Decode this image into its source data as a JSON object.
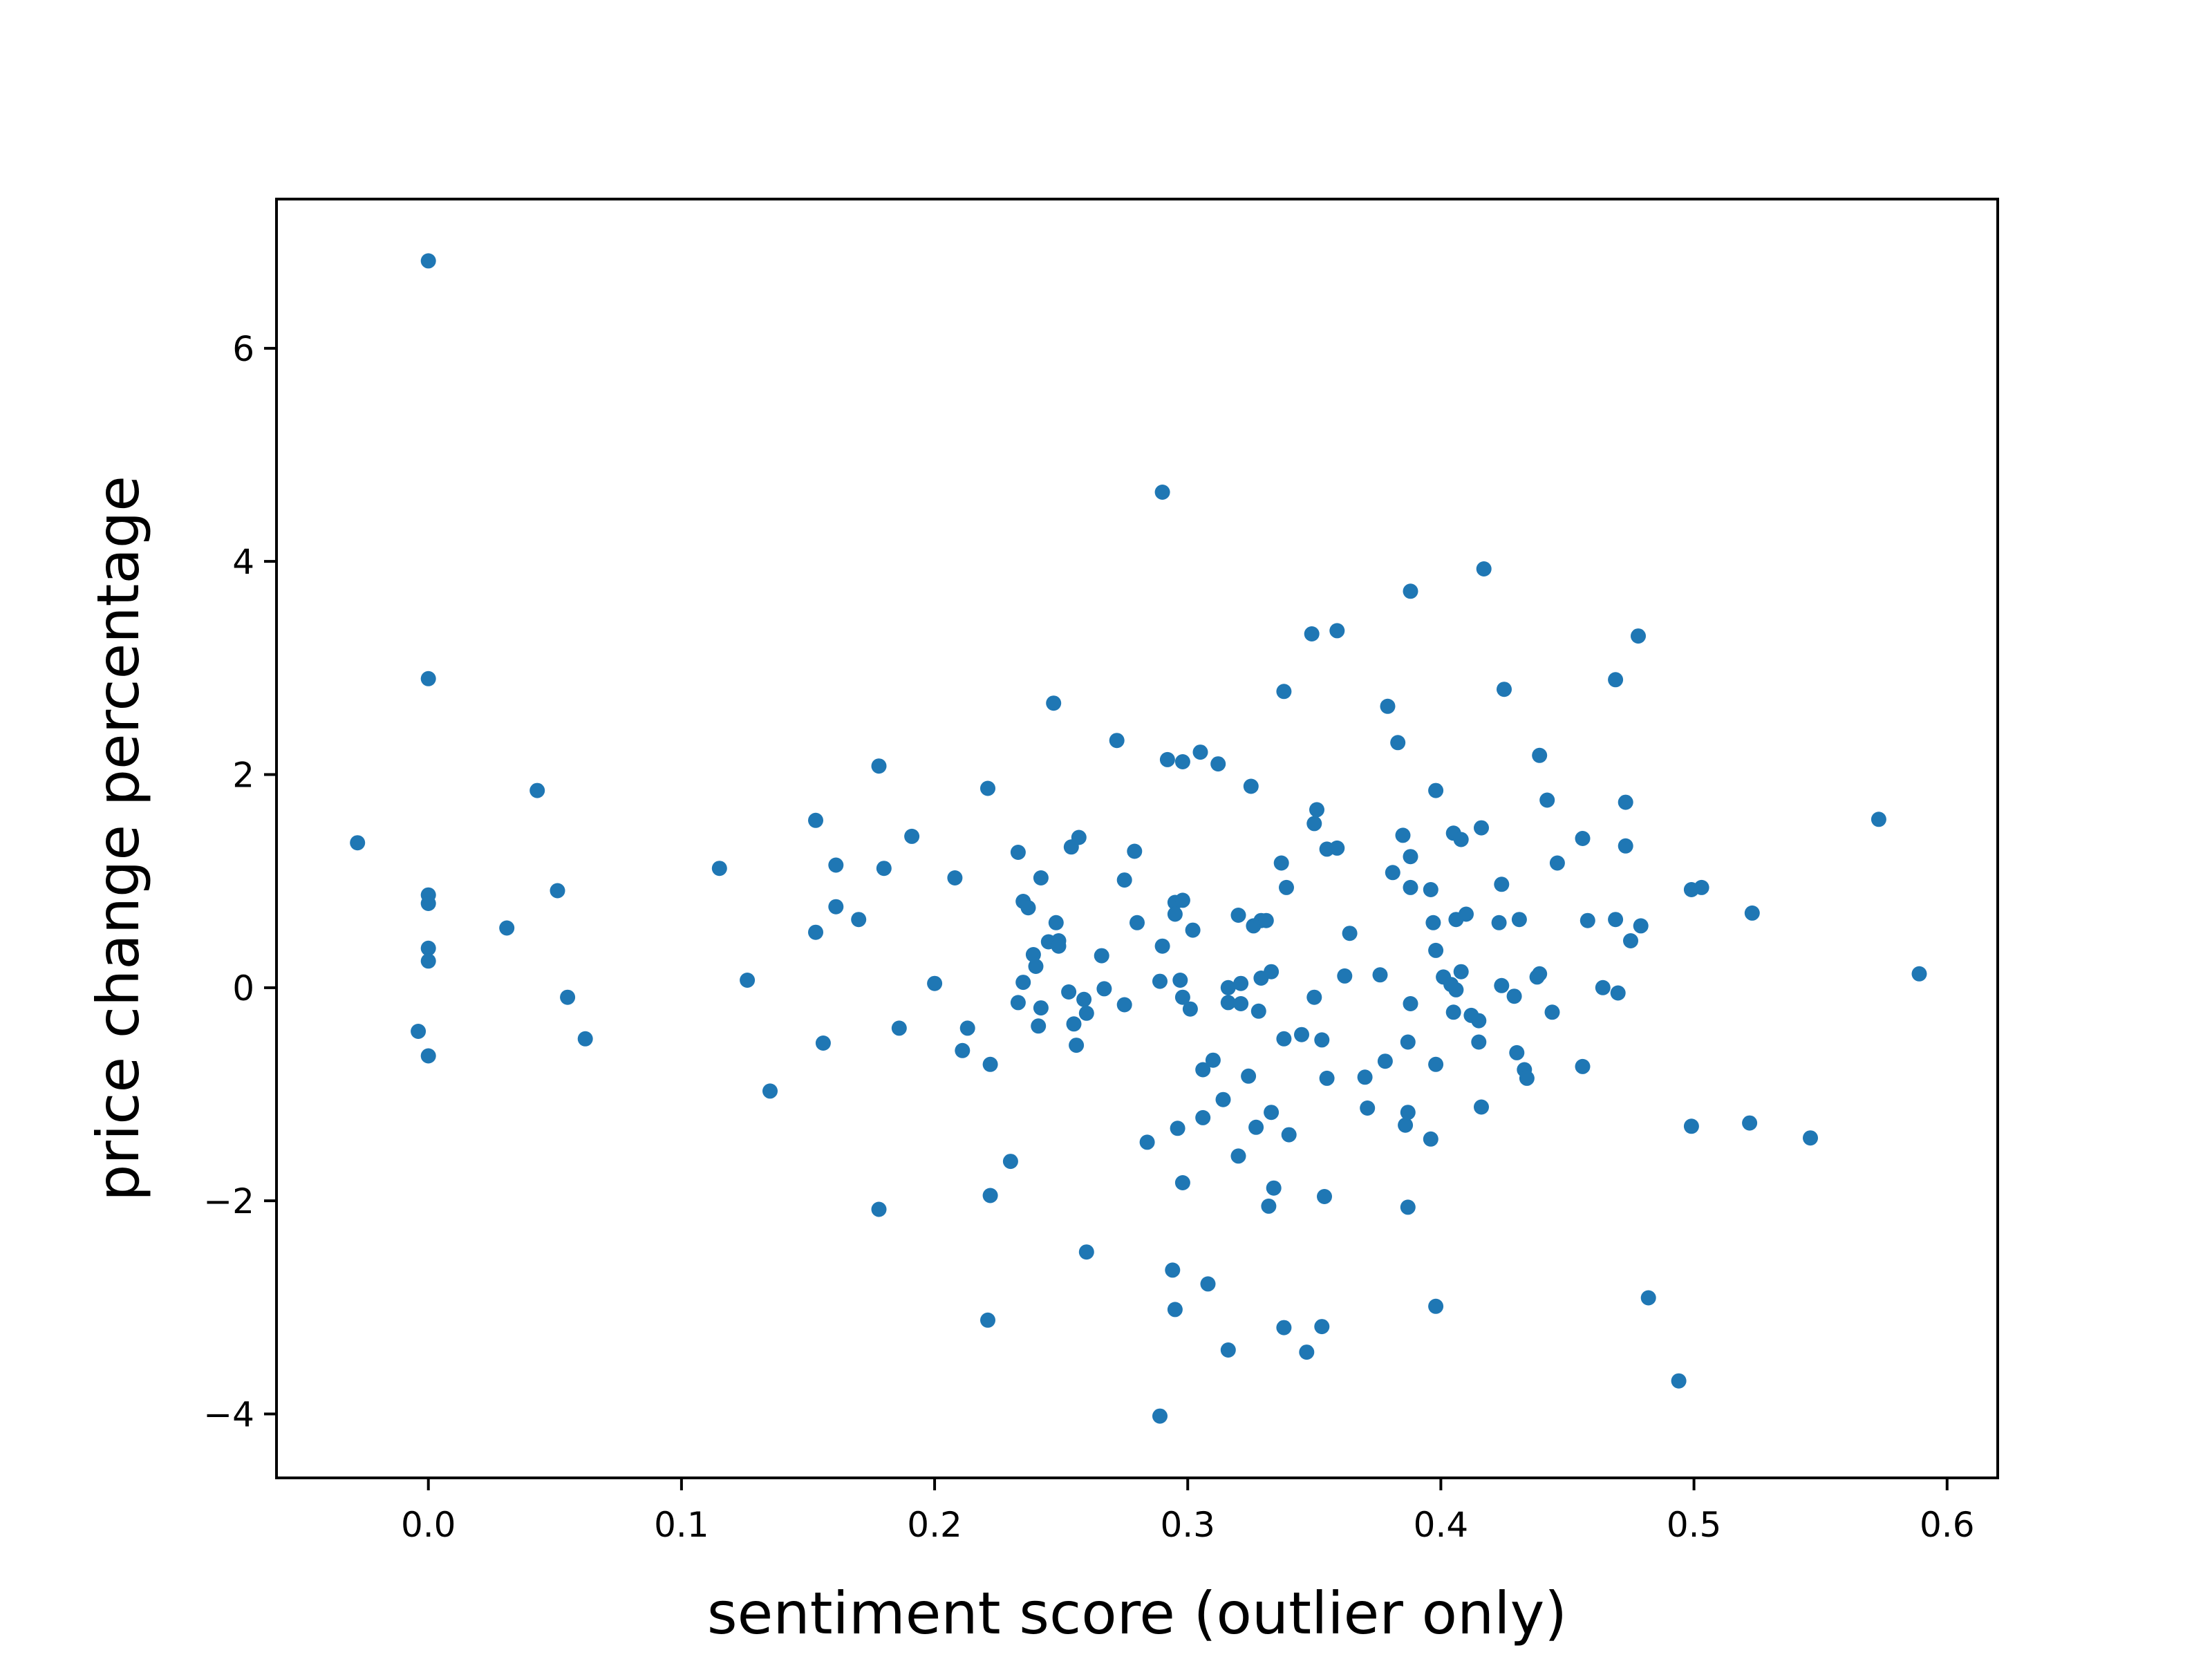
{
  "chart_data": {
    "type": "scatter",
    "title": "",
    "xlabel": "sentiment score (outlier only)",
    "ylabel": "price change percentage",
    "xlim": [
      -0.06,
      0.62
    ],
    "ylim": [
      -4.6,
      7.4
    ],
    "xticks": [
      0.0,
      0.1,
      0.2,
      0.3,
      0.4,
      0.5,
      0.6
    ],
    "xtick_labels": [
      "0.0",
      "0.1",
      "0.2",
      "0.3",
      "0.4",
      "0.5",
      "0.6"
    ],
    "yticks": [
      -4,
      -2,
      0,
      2,
      4,
      6
    ],
    "ytick_labels": [
      "−4",
      "−2",
      "0",
      "2",
      "4",
      "6"
    ],
    "grid": false,
    "point_color": "#1f77b4",
    "points": [
      [
        0.0,
        6.82
      ],
      [
        0.0,
        2.9
      ],
      [
        0.0,
        0.87
      ],
      [
        0.0,
        0.79
      ],
      [
        0.0,
        0.37
      ],
      [
        0.0,
        0.25
      ],
      [
        -0.004,
        -0.41
      ],
      [
        0.0,
        -0.64
      ],
      [
        -0.028,
        1.36
      ],
      [
        0.043,
        1.85
      ],
      [
        0.031,
        0.56
      ],
      [
        0.051,
        0.91
      ],
      [
        0.055,
        -0.09
      ],
      [
        0.062,
        -0.48
      ],
      [
        0.115,
        1.12
      ],
      [
        0.126,
        0.07
      ],
      [
        0.135,
        -0.97
      ],
      [
        0.153,
        1.57
      ],
      [
        0.153,
        0.52
      ],
      [
        0.156,
        -0.52
      ],
      [
        0.161,
        1.15
      ],
      [
        0.161,
        0.76
      ],
      [
        0.17,
        0.64
      ],
      [
        0.178,
        2.08
      ],
      [
        0.178,
        -2.08
      ],
      [
        0.18,
        1.12
      ],
      [
        0.186,
        -0.38
      ],
      [
        0.191,
        1.42
      ],
      [
        0.2,
        0.04
      ],
      [
        0.208,
        1.03
      ],
      [
        0.211,
        -0.59
      ],
      [
        0.213,
        -0.38
      ],
      [
        0.221,
        1.87
      ],
      [
        0.222,
        -0.72
      ],
      [
        0.222,
        -1.95
      ],
      [
        0.221,
        -3.12
      ],
      [
        0.23,
        -1.63
      ],
      [
        0.233,
        1.27
      ],
      [
        0.233,
        -0.14
      ],
      [
        0.235,
        0.81
      ],
      [
        0.235,
        0.05
      ],
      [
        0.237,
        0.75
      ],
      [
        0.239,
        0.31
      ],
      [
        0.24,
        0.2
      ],
      [
        0.241,
        -0.36
      ],
      [
        0.242,
        1.03
      ],
      [
        0.242,
        -0.19
      ],
      [
        0.245,
        0.43
      ],
      [
        0.247,
        2.67
      ],
      [
        0.248,
        0.61
      ],
      [
        0.249,
        0.44
      ],
      [
        0.249,
        0.39
      ],
      [
        0.253,
        -0.04
      ],
      [
        0.254,
        1.32
      ],
      [
        0.255,
        -0.34
      ],
      [
        0.256,
        -0.54
      ],
      [
        0.257,
        1.41
      ],
      [
        0.259,
        -0.11
      ],
      [
        0.26,
        -0.24
      ],
      [
        0.26,
        -2.48
      ],
      [
        0.266,
        0.3
      ],
      [
        0.267,
        -0.01
      ],
      [
        0.272,
        2.32
      ],
      [
        0.275,
        1.01
      ],
      [
        0.275,
        -0.16
      ],
      [
        0.279,
        1.28
      ],
      [
        0.28,
        0.61
      ],
      [
        0.284,
        -1.45
      ],
      [
        0.289,
        0.06
      ],
      [
        0.289,
        -4.02
      ],
      [
        0.29,
        4.65
      ],
      [
        0.29,
        0.39
      ],
      [
        0.292,
        2.14
      ],
      [
        0.294,
        -2.65
      ],
      [
        0.295,
        0.8
      ],
      [
        0.295,
        0.69
      ],
      [
        0.295,
        -3.02
      ],
      [
        0.296,
        -1.32
      ],
      [
        0.297,
        0.07
      ],
      [
        0.298,
        2.12
      ],
      [
        0.298,
        0.82
      ],
      [
        0.298,
        -0.09
      ],
      [
        0.298,
        -1.83
      ],
      [
        0.301,
        -0.2
      ],
      [
        0.302,
        0.54
      ],
      [
        0.305,
        2.21
      ],
      [
        0.306,
        -0.77
      ],
      [
        0.306,
        -1.22
      ],
      [
        0.308,
        -2.78
      ],
      [
        0.31,
        -0.68
      ],
      [
        0.312,
        2.1
      ],
      [
        0.314,
        -1.05
      ],
      [
        0.316,
        0.0
      ],
      [
        0.316,
        -0.14
      ],
      [
        0.316,
        -3.4
      ],
      [
        0.32,
        0.68
      ],
      [
        0.32,
        -1.58
      ],
      [
        0.321,
        0.04
      ],
      [
        0.321,
        -0.15
      ],
      [
        0.324,
        -0.83
      ],
      [
        0.325,
        1.89
      ],
      [
        0.326,
        0.58
      ],
      [
        0.327,
        -1.31
      ],
      [
        0.328,
        -0.22
      ],
      [
        0.329,
        0.63
      ],
      [
        0.329,
        0.09
      ],
      [
        0.331,
        0.63
      ],
      [
        0.332,
        -2.05
      ],
      [
        0.333,
        0.15
      ],
      [
        0.333,
        -1.17
      ],
      [
        0.334,
        -1.88
      ],
      [
        0.337,
        1.17
      ],
      [
        0.338,
        2.78
      ],
      [
        0.339,
        0.94
      ],
      [
        0.338,
        -0.48
      ],
      [
        0.338,
        -3.19
      ],
      [
        0.34,
        -1.38
      ],
      [
        0.345,
        -0.44
      ],
      [
        0.347,
        -3.42
      ],
      [
        0.349,
        3.32
      ],
      [
        0.351,
        1.67
      ],
      [
        0.35,
        1.54
      ],
      [
        0.35,
        -0.09
      ],
      [
        0.353,
        -0.49
      ],
      [
        0.353,
        -3.18
      ],
      [
        0.354,
        -1.96
      ],
      [
        0.355,
        1.3
      ],
      [
        0.355,
        -0.85
      ],
      [
        0.359,
        1.31
      ],
      [
        0.359,
        3.35
      ],
      [
        0.362,
        0.11
      ],
      [
        0.364,
        0.51
      ],
      [
        0.37,
        -0.84
      ],
      [
        0.371,
        -1.13
      ],
      [
        0.376,
        0.12
      ],
      [
        0.378,
        -0.69
      ],
      [
        0.379,
        2.64
      ],
      [
        0.381,
        1.08
      ],
      [
        0.383,
        2.3
      ],
      [
        0.385,
        1.43
      ],
      [
        0.386,
        -1.29
      ],
      [
        0.387,
        -1.17
      ],
      [
        0.387,
        -2.06
      ],
      [
        0.387,
        -0.51
      ],
      [
        0.388,
        1.23
      ],
      [
        0.388,
        0.94
      ],
      [
        0.388,
        -0.15
      ],
      [
        0.388,
        3.72
      ],
      [
        0.396,
        0.92
      ],
      [
        0.396,
        -1.42
      ],
      [
        0.397,
        0.61
      ],
      [
        0.398,
        1.85
      ],
      [
        0.398,
        0.35
      ],
      [
        0.398,
        -0.72
      ],
      [
        0.398,
        -2.99
      ],
      [
        0.401,
        0.1
      ],
      [
        0.404,
        0.03
      ],
      [
        0.405,
        1.45
      ],
      [
        0.405,
        -0.23
      ],
      [
        0.406,
        -0.02
      ],
      [
        0.406,
        0.64
      ],
      [
        0.408,
        1.39
      ],
      [
        0.408,
        0.15
      ],
      [
        0.41,
        0.69
      ],
      [
        0.412,
        -0.26
      ],
      [
        0.415,
        -0.31
      ],
      [
        0.415,
        -0.51
      ],
      [
        0.416,
        1.5
      ],
      [
        0.416,
        -1.12
      ],
      [
        0.417,
        3.93
      ],
      [
        0.423,
        0.61
      ],
      [
        0.424,
        0.97
      ],
      [
        0.424,
        0.02
      ],
      [
        0.425,
        2.8
      ],
      [
        0.429,
        -0.08
      ],
      [
        0.43,
        -0.61
      ],
      [
        0.431,
        0.64
      ],
      [
        0.433,
        -0.77
      ],
      [
        0.434,
        -0.85
      ],
      [
        0.438,
        0.1
      ],
      [
        0.439,
        2.18
      ],
      [
        0.439,
        0.13
      ],
      [
        0.442,
        1.76
      ],
      [
        0.444,
        -0.23
      ],
      [
        0.446,
        1.17
      ],
      [
        0.456,
        1.4
      ],
      [
        0.456,
        -0.74
      ],
      [
        0.458,
        0.63
      ],
      [
        0.464,
        0.0
      ],
      [
        0.469,
        2.89
      ],
      [
        0.469,
        0.64
      ],
      [
        0.47,
        -0.05
      ],
      [
        0.473,
        1.74
      ],
      [
        0.473,
        1.33
      ],
      [
        0.475,
        0.44
      ],
      [
        0.478,
        3.3
      ],
      [
        0.479,
        0.58
      ],
      [
        0.482,
        -2.91
      ],
      [
        0.494,
        -3.69
      ],
      [
        0.499,
        0.92
      ],
      [
        0.499,
        -1.3
      ],
      [
        0.503,
        0.94
      ],
      [
        0.522,
        -1.27
      ],
      [
        0.523,
        0.7
      ],
      [
        0.546,
        -1.41
      ],
      [
        0.573,
        1.58
      ],
      [
        0.589,
        0.13
      ]
    ]
  }
}
